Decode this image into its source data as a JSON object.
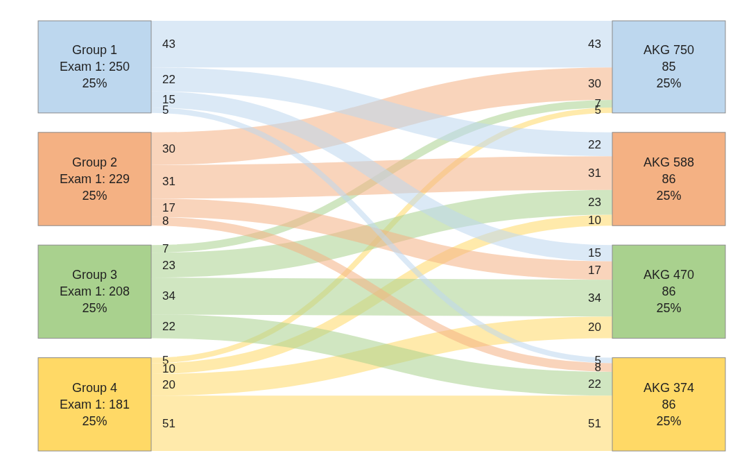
{
  "chart_data": {
    "type": "other",
    "categories": [
      "Group 1\nExam 1: 250\n25%",
      "Group 2\nExam 1: 229\n25%",
      "Group 3\nExam 1: 208\n25%",
      "Group 4\nExam 1: 181\n25%"
    ],
    "colors": [
      "#bdd7ee",
      "#f4b183",
      "#a9d18e",
      "#ffd966"
    ],
    "series": [
      {
        "name": "AKG 750\n85\n25%",
        "values": [
          43,
          30,
          7,
          5
        ]
      },
      {
        "name": "AKG 588\n86\n25%",
        "values": [
          22,
          31,
          23,
          10
        ]
      },
      {
        "name": "AKG 470\n86\n25%",
        "values": [
          15,
          17,
          34,
          20
        ]
      },
      {
        "name": "AKG 374\n86\n25%",
        "values": [
          5,
          8,
          22,
          51
        ]
      }
    ],
    "annotations": [
      "43",
      "30",
      "7",
      "5",
      "22",
      "31",
      "23",
      "10",
      "15",
      "17",
      "34",
      "20",
      "5",
      "8",
      "22",
      "51"
    ],
    "data_labels": true
  }
}
